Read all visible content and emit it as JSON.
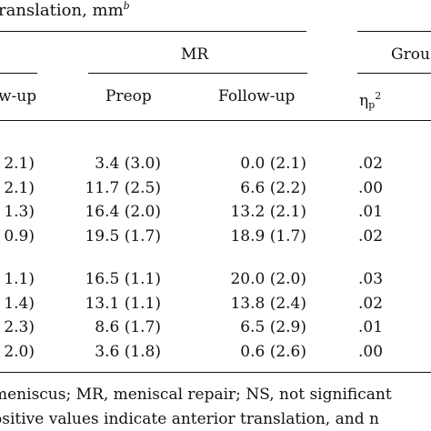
{
  "header": {
    "title_fragment": "ranslation, mm",
    "title_superscript": "b",
    "group_mr": "MR",
    "group_right_fragment": "Grou",
    "col_left_fragment": "w-up",
    "col_preop": "Preop",
    "col_followup": "Follow-up",
    "col_eta_base": "η",
    "col_eta_sub": "p",
    "col_eta_sup": "2"
  },
  "section1": [
    {
      "left": "2.1)",
      "preop": "3.4 (3.0)",
      "followup": "0.0 (2.1)",
      "eta": ".02"
    },
    {
      "left": "2.1)",
      "preop": "11.7 (2.5)",
      "followup": "6.6 (2.2)",
      "eta": ".00"
    },
    {
      "left": "1.3)",
      "preop": "16.4 (2.0)",
      "followup": "13.2 (2.1)",
      "eta": ".01"
    },
    {
      "left": "0.9)",
      "preop": "19.5 (1.7)",
      "followup": "18.9 (1.7)",
      "eta": ".02"
    }
  ],
  "section2": [
    {
      "left": "1.1)",
      "preop": "16.5 (1.1)",
      "followup": "20.0 (2.0)",
      "eta": ".03"
    },
    {
      "left": "1.4)",
      "preop": "13.1 (1.1)",
      "followup": "13.8 (2.4)",
      "eta": ".02"
    },
    {
      "left": "2.3)",
      "preop": "8.6 (1.7)",
      "followup": "6.5 (2.9)",
      "eta": ".01"
    },
    {
      "left": "2.0)",
      "preop": "3.6 (1.8)",
      "followup": "0.6 (2.6)",
      "eta": ".00"
    }
  ],
  "footnotes": {
    "line1": "meniscus; MR, meniscal repair; NS, not significant",
    "line2": "ositive values indicate anterior translation, and n"
  }
}
